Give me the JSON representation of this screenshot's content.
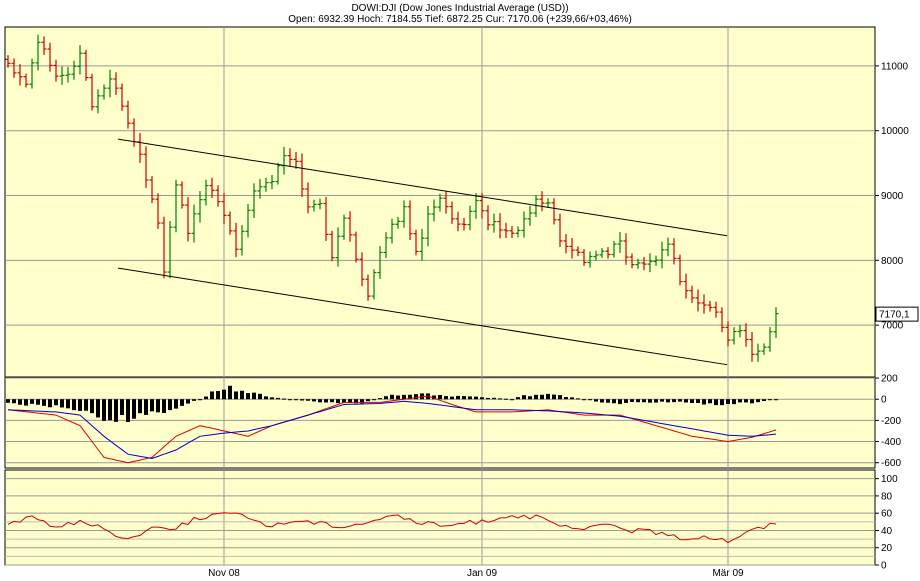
{
  "header": {
    "title": "DOWI:DJI (Dow Jones Industrial Average (USD))",
    "ohlc": "Open: 6932.39 Hoch: 7184.55 Tief: 6872.25 Cur: 7170.06 (+239,66/+03,46%)"
  },
  "colors": {
    "plot_bg": "#ffffcc",
    "up_bar": "#008000",
    "down_bar": "#cc0000",
    "macd_line": "#e00000",
    "signal_line": "#0000cc",
    "histogram": "#000000",
    "grid": "#999999"
  },
  "chart_data": [
    {
      "type": "ohlc",
      "panel": "price",
      "title": "DOWI:DJI (Dow Jones Industrial Average (USD))",
      "xticks": [
        "Nov 08",
        "Jan 09",
        "Mär 09"
      ],
      "yticks": [
        7000,
        8000,
        9000,
        10000,
        11000
      ],
      "ylim": [
        6200,
        11600
      ],
      "current_label": "7170,1",
      "close_anchors": [
        [
          0,
          11050
        ],
        [
          3,
          10750
        ],
        [
          5,
          11400
        ],
        [
          8,
          10900
        ],
        [
          10,
          10850
        ],
        [
          12,
          11200
        ],
        [
          14,
          10400
        ],
        [
          17,
          10800
        ],
        [
          19,
          10400
        ],
        [
          22,
          9600
        ],
        [
          25,
          8600
        ],
        [
          26,
          7800
        ],
        [
          28,
          9200
        ],
        [
          30,
          8400
        ],
        [
          33,
          9200
        ],
        [
          36,
          8700
        ],
        [
          38,
          8200
        ],
        [
          41,
          9100
        ],
        [
          44,
          9250
        ],
        [
          46,
          9600
        ],
        [
          48,
          9500
        ],
        [
          50,
          8800
        ],
        [
          52,
          8900
        ],
        [
          54,
          8000
        ],
        [
          56,
          8700
        ],
        [
          58,
          8000
        ],
        [
          60,
          7500
        ],
        [
          62,
          8100
        ],
        [
          64,
          8500
        ],
        [
          66,
          8800
        ],
        [
          68,
          8100
        ],
        [
          70,
          8700
        ],
        [
          72,
          9000
        ],
        [
          74,
          8600
        ],
        [
          76,
          8500
        ],
        [
          78,
          8900
        ],
        [
          80,
          8600
        ],
        [
          82,
          8500
        ],
        [
          84,
          8400
        ],
        [
          86,
          8600
        ],
        [
          88,
          8900
        ],
        [
          90,
          8900
        ],
        [
          92,
          8300
        ],
        [
          94,
          8200
        ],
        [
          96,
          8000
        ],
        [
          98,
          8100
        ],
        [
          100,
          8100
        ],
        [
          102,
          8300
        ],
        [
          104,
          7900
        ],
        [
          106,
          8000
        ],
        [
          108,
          8000
        ],
        [
          110,
          8300
        ],
        [
          112,
          7700
        ],
        [
          114,
          7400
        ],
        [
          116,
          7300
        ],
        [
          118,
          7200
        ],
        [
          120,
          6800
        ],
        [
          122,
          6900
        ],
        [
          124,
          6600
        ],
        [
          126,
          6650
        ],
        [
          128,
          7170
        ]
      ],
      "channel": {
        "upper": [
          [
            13,
            9870
          ],
          [
            83,
            8380
          ]
        ],
        "lower": [
          [
            13,
            7880
          ],
          [
            83,
            6390
          ]
        ]
      }
    },
    {
      "type": "bar+line",
      "panel": "macd",
      "yticks": [
        200,
        0,
        -200,
        -400,
        -600
      ],
      "ylim": [
        -650,
        210
      ],
      "histogram_anchors": [
        [
          0,
          -50
        ],
        [
          10,
          -100
        ],
        [
          18,
          -250
        ],
        [
          22,
          -200
        ],
        [
          28,
          -100
        ],
        [
          32,
          0
        ],
        [
          36,
          150
        ],
        [
          38,
          120
        ],
        [
          44,
          20
        ],
        [
          50,
          -20
        ],
        [
          58,
          -60
        ],
        [
          64,
          50
        ],
        [
          70,
          60
        ],
        [
          76,
          30
        ],
        [
          80,
          20
        ],
        [
          84,
          0
        ],
        [
          86,
          40
        ],
        [
          90,
          60
        ],
        [
          94,
          20
        ],
        [
          100,
          -50
        ],
        [
          106,
          -40
        ],
        [
          112,
          -30
        ],
        [
          118,
          -60
        ],
        [
          124,
          -40
        ],
        [
          128,
          0
        ]
      ],
      "series": [
        {
          "name": "",
          "anchors": [
            [
              0,
              -100
            ],
            [
              8,
              -150
            ],
            [
              12,
              -250
            ],
            [
              16,
              -550
            ],
            [
              20,
              -600
            ],
            [
              24,
              -550
            ],
            [
              28,
              -350
            ],
            [
              32,
              -250
            ],
            [
              36,
              -300
            ],
            [
              40,
              -350
            ],
            [
              44,
              -250
            ],
            [
              50,
              -150
            ],
            [
              56,
              -30
            ],
            [
              62,
              -30
            ],
            [
              66,
              0
            ],
            [
              70,
              30
            ],
            [
              74,
              -50
            ],
            [
              78,
              -120
            ],
            [
              84,
              -120
            ],
            [
              90,
              -100
            ],
            [
              96,
              -150
            ],
            [
              102,
              -150
            ],
            [
              108,
              -250
            ],
            [
              114,
              -350
            ],
            [
              120,
              -400
            ],
            [
              124,
              -360
            ],
            [
              128,
              -290
            ]
          ]
        },
        {
          "name": "",
          "anchors": [
            [
              0,
              -100
            ],
            [
              8,
              -120
            ],
            [
              12,
              -150
            ],
            [
              16,
              -350
            ],
            [
              20,
              -520
            ],
            [
              24,
              -560
            ],
            [
              28,
              -480
            ],
            [
              32,
              -350
            ],
            [
              36,
              -320
            ],
            [
              40,
              -300
            ],
            [
              44,
              -250
            ],
            [
              50,
              -150
            ],
            [
              56,
              -50
            ],
            [
              62,
              -40
            ],
            [
              66,
              -20
            ],
            [
              70,
              -40
            ],
            [
              74,
              -70
            ],
            [
              78,
              -100
            ],
            [
              84,
              -100
            ],
            [
              90,
              -110
            ],
            [
              96,
              -130
            ],
            [
              102,
              -160
            ],
            [
              108,
              -220
            ],
            [
              114,
              -280
            ],
            [
              120,
              -340
            ],
            [
              124,
              -350
            ],
            [
              128,
              -330
            ]
          ]
        }
      ]
    },
    {
      "type": "line",
      "panel": "indicator",
      "yticks": [
        100,
        80,
        60,
        40,
        20,
        0
      ],
      "ylim": [
        0,
        110
      ],
      "series": [
        {
          "name": "",
          "anchors": [
            [
              0,
              48
            ],
            [
              4,
              55
            ],
            [
              8,
              45
            ],
            [
              12,
              50
            ],
            [
              16,
              42
            ],
            [
              20,
              30
            ],
            [
              24,
              43
            ],
            [
              28,
              44
            ],
            [
              32,
              55
            ],
            [
              36,
              60
            ],
            [
              40,
              55
            ],
            [
              44,
              45
            ],
            [
              48,
              52
            ],
            [
              52,
              48
            ],
            [
              56,
              45
            ],
            [
              60,
              50
            ],
            [
              64,
              58
            ],
            [
              68,
              50
            ],
            [
              72,
              45
            ],
            [
              76,
              48
            ],
            [
              80,
              52
            ],
            [
              84,
              58
            ],
            [
              88,
              55
            ],
            [
              92,
              45
            ],
            [
              96,
              40
            ],
            [
              100,
              48
            ],
            [
              104,
              40
            ],
            [
              108,
              38
            ],
            [
              112,
              30
            ],
            [
              116,
              34
            ],
            [
              120,
              28
            ],
            [
              124,
              40
            ],
            [
              128,
              48
            ]
          ]
        }
      ]
    }
  ]
}
